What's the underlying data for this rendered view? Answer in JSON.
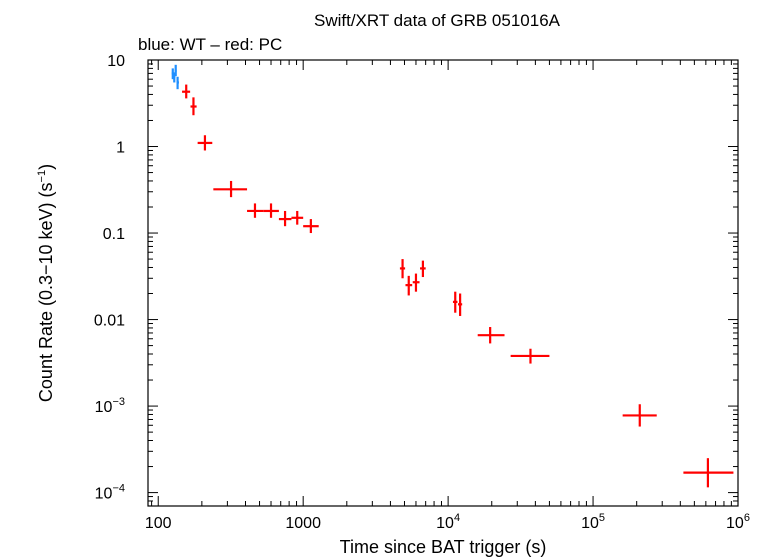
{
  "chart_data": {
    "type": "scatter",
    "title": "Swift/XRT data of GRB 051016A",
    "subtitle": "blue: WT – red: PC",
    "xlabel": "Time since BAT trigger (s)",
    "ylabel": "Count Rate (0.3−10 keV) (s",
    "ylabel_sup": "−1",
    "ylabel_end": ")",
    "x_scale": "log",
    "y_scale": "log",
    "xlim": [
      85,
      1000000
    ],
    "ylim": [
      7e-05,
      10
    ],
    "grid": false,
    "x_ticks": [
      {
        "value": 100,
        "base": "100",
        "exp": ""
      },
      {
        "value": 1000,
        "base": "1000",
        "exp": ""
      },
      {
        "value": 10000,
        "base": "10",
        "exp": "4"
      },
      {
        "value": 100000,
        "base": "10",
        "exp": "5"
      },
      {
        "value": 1000000,
        "base": "10",
        "exp": "6"
      }
    ],
    "y_ticks": [
      {
        "value": 10,
        "base": "10",
        "exp": ""
      },
      {
        "value": 1,
        "base": "1",
        "exp": ""
      },
      {
        "value": 0.1,
        "base": "0.1",
        "exp": ""
      },
      {
        "value": 0.01,
        "base": "0.01",
        "exp": ""
      },
      {
        "value": 0.001,
        "base": "10",
        "exp": "−3"
      },
      {
        "value": 0.0001,
        "base": "10",
        "exp": "−4"
      }
    ],
    "series": [
      {
        "mode": "WT",
        "color": "#1f8fff",
        "points": [
          {
            "x": 126,
            "xlo": 124,
            "xhi": 128,
            "y": 7.0,
            "ylo": 6.0,
            "yhi": 8.0
          },
          {
            "x": 129,
            "xlo": 127,
            "xhi": 131,
            "y": 6.3,
            "ylo": 5.5,
            "yhi": 7.2
          },
          {
            "x": 132,
            "xlo": 130,
            "xhi": 134,
            "y": 7.5,
            "ylo": 6.5,
            "yhi": 8.8
          },
          {
            "x": 136,
            "xlo": 134,
            "xhi": 139,
            "y": 5.5,
            "ylo": 4.6,
            "yhi": 6.4
          }
        ]
      },
      {
        "mode": "PC",
        "color": "#ff0000",
        "points": [
          {
            "x": 156,
            "xlo": 146,
            "xhi": 166,
            "y": 4.3,
            "ylo": 3.6,
            "yhi": 5.2
          },
          {
            "x": 175,
            "xlo": 167,
            "xhi": 184,
            "y": 2.9,
            "ylo": 2.3,
            "yhi": 3.7
          },
          {
            "x": 210,
            "xlo": 187,
            "xhi": 236,
            "y": 1.1,
            "ylo": 0.9,
            "yhi": 1.35
          },
          {
            "x": 318,
            "xlo": 240,
            "xhi": 410,
            "y": 0.32,
            "ylo": 0.26,
            "yhi": 0.4
          },
          {
            "x": 465,
            "xlo": 410,
            "xhi": 530,
            "y": 0.18,
            "ylo": 0.15,
            "yhi": 0.22
          },
          {
            "x": 600,
            "xlo": 530,
            "xhi": 680,
            "y": 0.18,
            "ylo": 0.15,
            "yhi": 0.22
          },
          {
            "x": 750,
            "xlo": 680,
            "xhi": 830,
            "y": 0.145,
            "ylo": 0.12,
            "yhi": 0.18
          },
          {
            "x": 910,
            "xlo": 830,
            "xhi": 1000,
            "y": 0.15,
            "ylo": 0.125,
            "yhi": 0.18
          },
          {
            "x": 1130,
            "xlo": 1000,
            "xhi": 1280,
            "y": 0.12,
            "ylo": 0.1,
            "yhi": 0.145
          },
          {
            "x": 4850,
            "xlo": 4650,
            "xhi": 5050,
            "y": 0.039,
            "ylo": 0.03,
            "yhi": 0.05
          },
          {
            "x": 5350,
            "xlo": 5080,
            "xhi": 5650,
            "y": 0.025,
            "ylo": 0.019,
            "yhi": 0.032
          },
          {
            "x": 6000,
            "xlo": 5700,
            "xhi": 6350,
            "y": 0.027,
            "ylo": 0.021,
            "yhi": 0.034
          },
          {
            "x": 6700,
            "xlo": 6400,
            "xhi": 7000,
            "y": 0.039,
            "ylo": 0.031,
            "yhi": 0.048
          },
          {
            "x": 11200,
            "xlo": 10800,
            "xhi": 11600,
            "y": 0.016,
            "ylo": 0.012,
            "yhi": 0.021
          },
          {
            "x": 12100,
            "xlo": 11700,
            "xhi": 12500,
            "y": 0.015,
            "ylo": 0.011,
            "yhi": 0.02
          },
          {
            "x": 19500,
            "xlo": 16000,
            "xhi": 24500,
            "y": 0.0066,
            "ylo": 0.0053,
            "yhi": 0.0082
          },
          {
            "x": 37000,
            "xlo": 27000,
            "xhi": 50000,
            "y": 0.0038,
            "ylo": 0.0031,
            "yhi": 0.0046
          },
          {
            "x": 210000,
            "xlo": 160000,
            "xhi": 275000,
            "y": 0.00078,
            "ylo": 0.00058,
            "yhi": 0.00105
          },
          {
            "x": 620000,
            "xlo": 420000,
            "xhi": 930000,
            "y": 0.00017,
            "ylo": 0.000115,
            "yhi": 0.00025
          }
        ]
      }
    ]
  }
}
